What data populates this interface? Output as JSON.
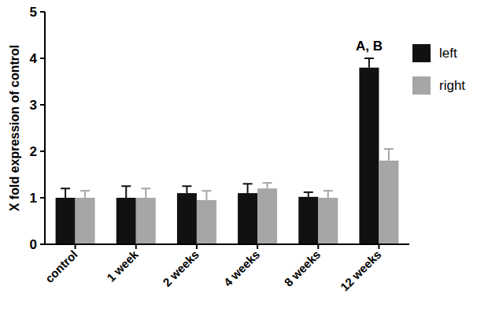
{
  "chart_data": {
    "type": "bar",
    "y_label": "X fold expression of control",
    "categories": [
      "control",
      "1 week",
      "2 weeks",
      "4 weeks",
      "8 weeks",
      "12 weeks"
    ],
    "series": [
      {
        "name": "left",
        "color": "#111111",
        "values": [
          1.0,
          1.0,
          1.1,
          1.1,
          1.02,
          3.8
        ],
        "errors": [
          0.2,
          0.25,
          0.15,
          0.2,
          0.1,
          0.2
        ]
      },
      {
        "name": "right",
        "color": "#a6a6a6",
        "values": [
          1.0,
          1.0,
          0.95,
          1.2,
          1.0,
          1.8
        ],
        "errors": [
          0.15,
          0.2,
          0.2,
          0.12,
          0.15,
          0.25
        ]
      }
    ],
    "ylim": [
      0,
      5
    ],
    "yticks": [
      0,
      1,
      2,
      3,
      4,
      5
    ],
    "grid": false,
    "legend": "right",
    "annotations": [
      {
        "text": "A, B",
        "category": "12 weeks"
      }
    ]
  }
}
